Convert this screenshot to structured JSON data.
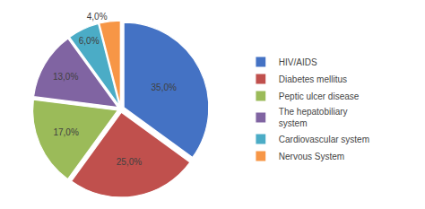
{
  "chart_data": {
    "type": "pie",
    "categories": [
      "HIV/AIDS",
      "Diabetes mellitus",
      "Peptic ulcer disease",
      "The hepatobiliary\nsystem",
      "Cardiovascular system",
      "Nervous System"
    ],
    "values": [
      35.0,
      25.0,
      17.0,
      13.0,
      6.0,
      4.0
    ],
    "value_labels": [
      "35,0%",
      "25,0%",
      "17,0%",
      "13,0%",
      "6,0%",
      "4,0%"
    ],
    "colors": [
      "#4472C4",
      "#C0504D",
      "#9BBB59",
      "#8064A2",
      "#4BACC6",
      "#F79646"
    ],
    "data_labels": true,
    "legend": "right"
  }
}
